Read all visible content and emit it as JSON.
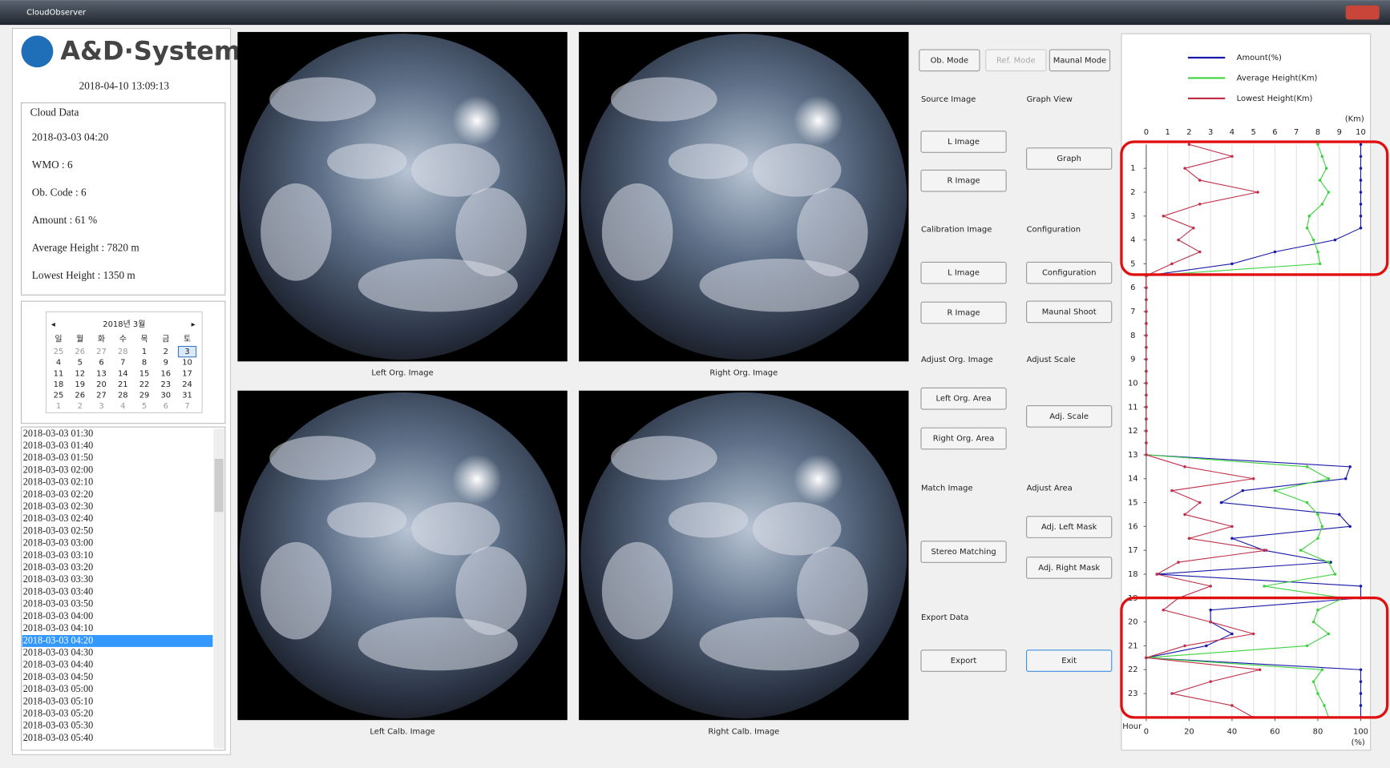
{
  "window": {
    "title": "CloudObserver"
  },
  "logo": "A&D·System",
  "datetime": "2018-04-10 13:09:13",
  "cloud_data": {
    "title": "Cloud Data",
    "lines": [
      "2018-03-03 04:20",
      "WMO : 6",
      "Ob. Code : 6",
      "Amount : 61 %",
      "Average Height : 7820 m",
      "Lowest Height : 1350 m"
    ]
  },
  "calendar": {
    "title": "2018년 3월",
    "weekdays": [
      "일",
      "월",
      "화",
      "수",
      "목",
      "금",
      "토"
    ],
    "weeks": [
      [
        25,
        26,
        27,
        28,
        1,
        2,
        3
      ],
      [
        4,
        5,
        6,
        7,
        8,
        9,
        10
      ],
      [
        11,
        12,
        13,
        14,
        15,
        16,
        17
      ],
      [
        18,
        19,
        20,
        21,
        22,
        23,
        24
      ],
      [
        25,
        26,
        27,
        28,
        29,
        30,
        31
      ],
      [
        1,
        2,
        3,
        4,
        5,
        6,
        7
      ]
    ]
  },
  "time_list": {
    "items": [
      "2018-03-03 01:30",
      "2018-03-03 01:40",
      "2018-03-03 01:50",
      "2018-03-03 02:00",
      "2018-03-03 02:10",
      "2018-03-03 02:20",
      "2018-03-03 02:30",
      "2018-03-03 02:40",
      "2018-03-03 02:50",
      "2018-03-03 03:00",
      "2018-03-03 03:10",
      "2018-03-03 03:20",
      "2018-03-03 03:30",
      "2018-03-03 03:40",
      "2018-03-03 03:50",
      "2018-03-03 04:00",
      "2018-03-03 04:10",
      "2018-03-03 04:20",
      "2018-03-03 04:30",
      "2018-03-03 04:40",
      "2018-03-03 04:50",
      "2018-03-03 05:00",
      "2018-03-03 05:10",
      "2018-03-03 05:20",
      "2018-03-03 05:30",
      "2018-03-03 05:40"
    ],
    "selected": 17
  },
  "images": {
    "labels": [
      "Left Org. Image",
      "Right Org. Image",
      "Left Calb. Image",
      "Right Calb. Image"
    ]
  },
  "controls": {
    "mode_buttons": [
      "Ob. Mode",
      "Ref. Mode",
      "Maunal Mode"
    ],
    "left_sections": [
      {
        "label": "Source Image",
        "buttons": [
          "L Image",
          "R Image"
        ]
      },
      {
        "label": "Calibration Image",
        "buttons": [
          "L Image",
          "R Image"
        ]
      },
      {
        "label": "Adjust Org. Image",
        "buttons": [
          "Left Org. Area",
          "Right Org. Area"
        ]
      },
      {
        "label": "Match Image",
        "buttons": [
          "Stereo Matching"
        ]
      },
      {
        "label": "Export Data",
        "buttons": [
          "Export"
        ]
      }
    ],
    "right_sections": [
      {
        "label": "Graph View",
        "buttons": [
          "Graph"
        ]
      },
      {
        "label": "Configuration",
        "buttons": [
          "Configuration",
          "Maunal Shoot"
        ]
      },
      {
        "label": "Adjust Scale",
        "buttons": [
          "Adj. Scale"
        ]
      },
      {
        "label": "Adjust Area",
        "buttons": [
          "Adj. Left Mask",
          "Adj. Right Mask"
        ]
      }
    ],
    "exit_button": "Exit"
  },
  "chart_data": {
    "type": "line",
    "orientation": "vertical",
    "grid": true,
    "x": [
      0,
      0.5,
      1,
      1.5,
      2,
      2.5,
      3,
      3.5,
      4,
      4.5,
      5,
      5.5,
      6,
      6.5,
      7,
      7.5,
      8,
      8.5,
      9,
      9.5,
      10,
      10.5,
      11,
      11.5,
      12,
      12.5,
      13,
      13.5,
      14,
      14.5,
      15,
      15.5,
      16,
      16.5,
      17,
      17.5,
      18,
      18.5,
      19,
      19.5,
      20,
      20.5,
      21,
      21.5,
      22,
      22.5,
      23,
      23.5,
      24
    ],
    "xlim": [
      0,
      24
    ],
    "xticks": [
      1,
      2,
      3,
      4,
      5,
      6,
      7,
      8,
      9,
      10,
      11,
      12,
      13,
      14,
      15,
      16,
      17,
      18,
      19,
      20,
      21,
      22,
      23
    ],
    "xlabel": "Hour",
    "ylim": [
      0,
      10
    ],
    "yticks": [
      0,
      1,
      2,
      3,
      4,
      5,
      6,
      7,
      8,
      9,
      10
    ],
    "ylabel": "(Km)",
    "y2lim": [
      0,
      100
    ],
    "y2ticks": [
      0,
      20,
      40,
      60,
      80,
      100
    ],
    "y2label": "(%)",
    "series": [
      {
        "name": "Amount(%)",
        "color": "#1a1aa8",
        "axis": "y2",
        "values": [
          100,
          100,
          100,
          100,
          100,
          100,
          100,
          100,
          88,
          60,
          40,
          0,
          0,
          0,
          0,
          0,
          0,
          0,
          0,
          0,
          0,
          0,
          0,
          0,
          0,
          0,
          0,
          95,
          93,
          45,
          35,
          90,
          95,
          40,
          55,
          86,
          5,
          100,
          100,
          30,
          30,
          40,
          28,
          0,
          100,
          100,
          100,
          100,
          100
        ]
      },
      {
        "name": "Average Height(Km)",
        "color": "#3fd13f",
        "values": [
          8,
          8.2,
          8.4,
          8.1,
          8.5,
          8.2,
          7.6,
          7.5,
          7.8,
          8,
          8.1,
          0,
          0,
          0,
          0,
          0,
          0,
          0,
          0,
          0,
          0,
          0,
          0,
          0,
          0,
          0,
          0,
          7.5,
          8.5,
          6,
          7.5,
          8,
          8.2,
          8,
          7.2,
          8.5,
          8.8,
          5.5,
          9.2,
          8,
          7.8,
          8.5,
          7.5,
          0,
          8.2,
          7.8,
          8,
          8.3,
          8.5
        ]
      },
      {
        "name": "Lowest Height(Km)",
        "color": "#c0304a",
        "values": [
          2,
          4,
          1.8,
          2.5,
          5.2,
          2.5,
          0.8,
          2.2,
          1.5,
          2.5,
          1.2,
          0,
          0,
          0,
          0,
          0,
          0,
          0,
          0,
          0,
          0,
          0,
          0,
          0,
          0,
          0,
          0,
          1.8,
          5,
          1.2,
          2.5,
          1.8,
          4,
          2,
          5.6,
          1.5,
          0.5,
          3,
          1.5,
          0.8,
          3,
          5,
          1.8,
          0,
          5.3,
          3,
          1.2,
          4,
          5
        ]
      }
    ]
  }
}
